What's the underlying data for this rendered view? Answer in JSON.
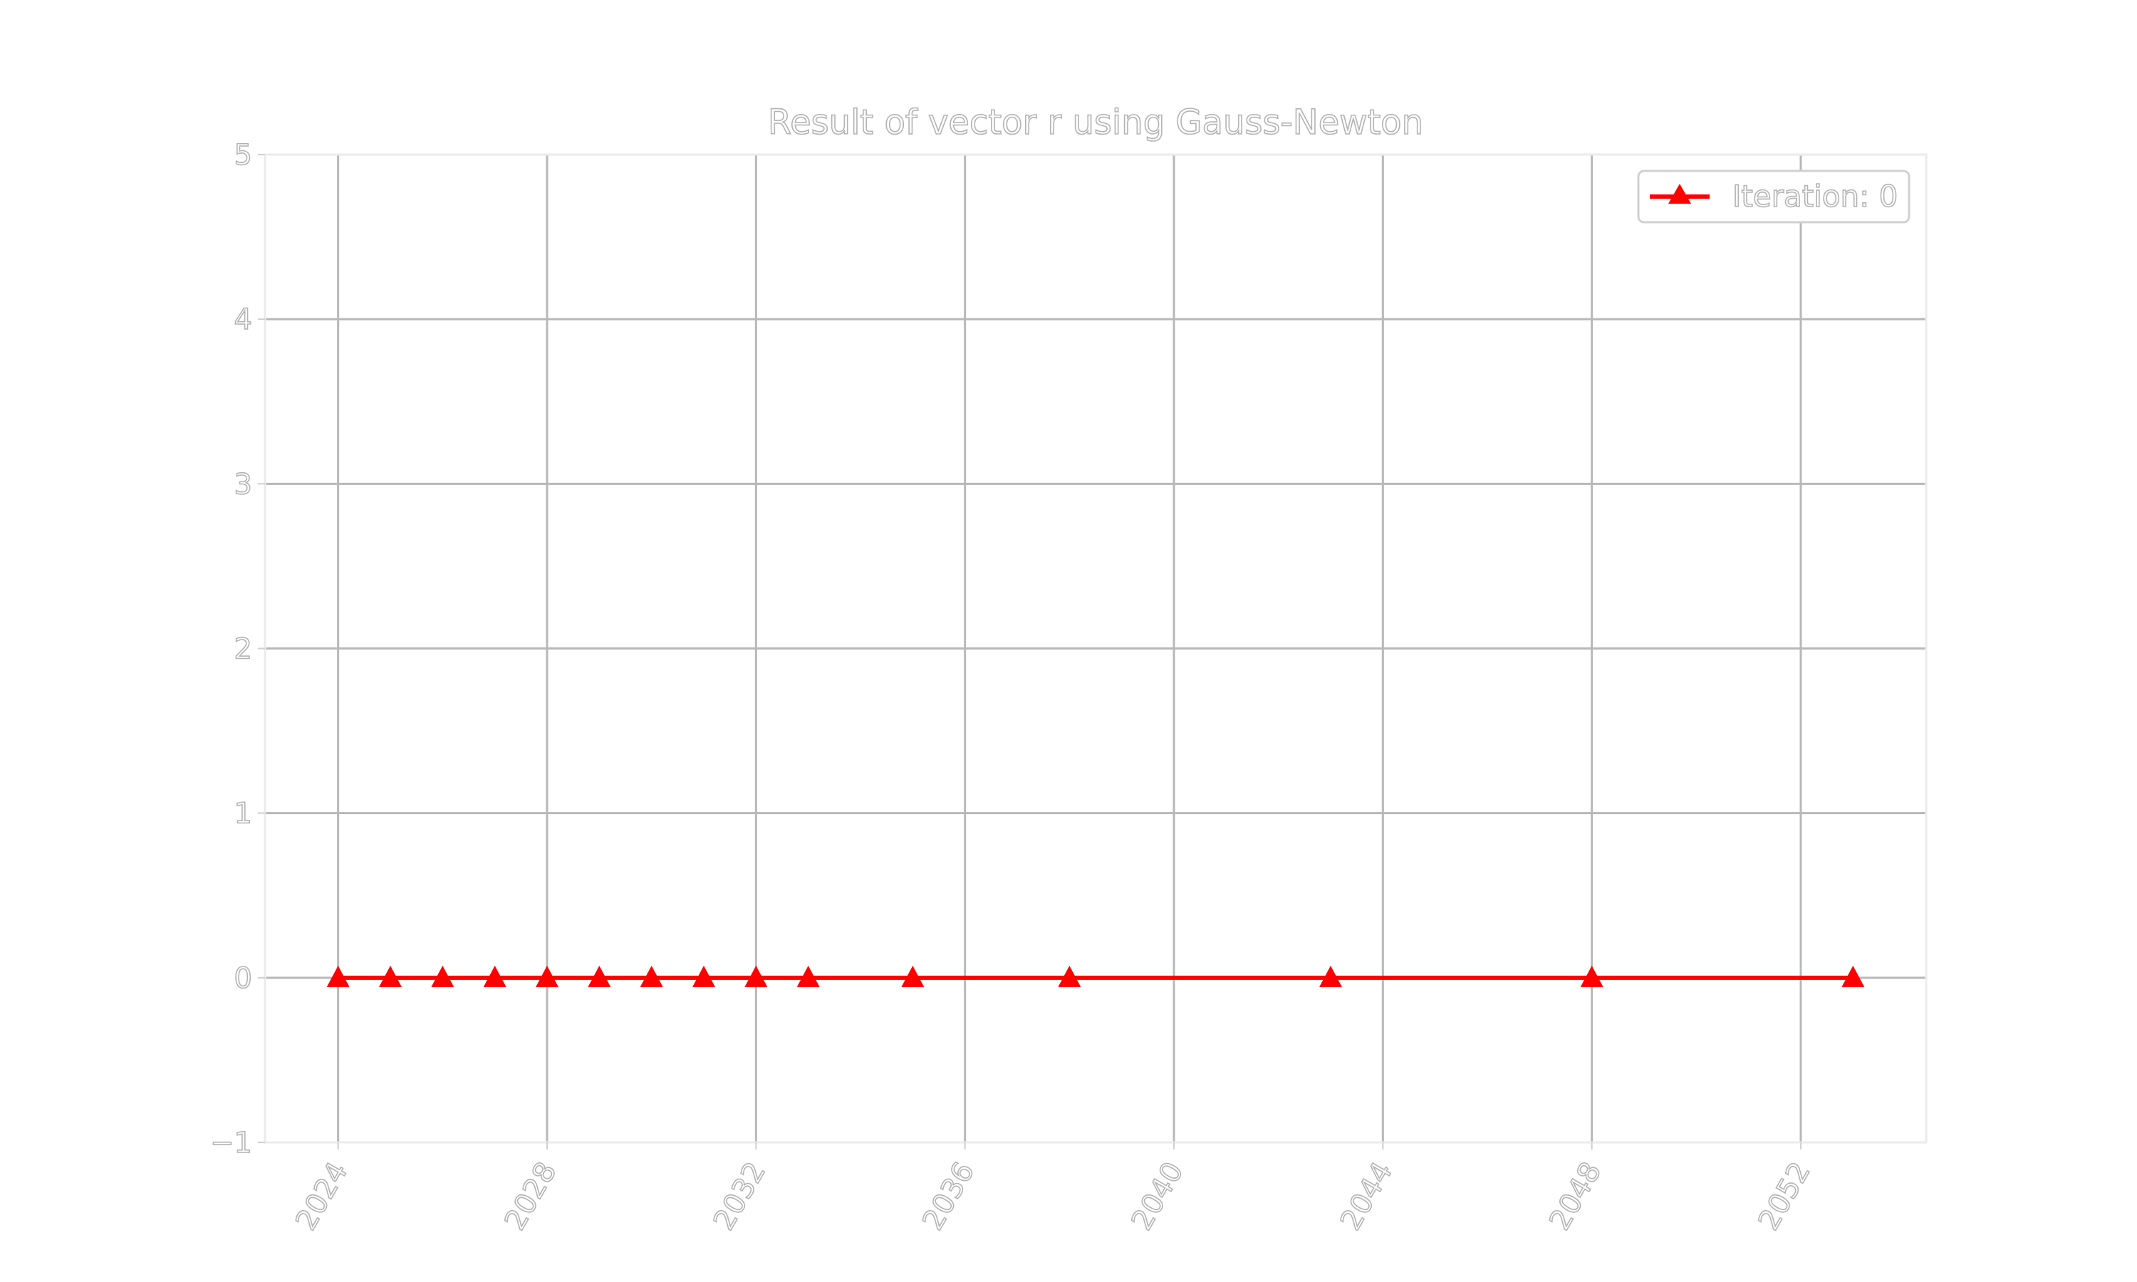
{
  "chart_data": {
    "type": "line",
    "title": "Result of vector r using Gauss-Newton",
    "xlabel": "",
    "ylabel": "",
    "xlim": [
      2022.6,
      2054.4
    ],
    "ylim": [
      -1,
      5
    ],
    "x_ticks": [
      "2024",
      "2028",
      "2032",
      "2036",
      "2040",
      "2044",
      "2048",
      "2052"
    ],
    "y_ticks": [
      "−1",
      "0",
      "1",
      "2",
      "3",
      "4",
      "5"
    ],
    "grid": true,
    "legend_position": "top-right",
    "series": [
      {
        "name": "Iteration: 0",
        "color": "#ff0000",
        "marker": "triangle-up",
        "x": [
          2024,
          2025,
          2026,
          2027,
          2028,
          2029,
          2030,
          2031,
          2032,
          2033,
          2035,
          2038,
          2043,
          2048,
          2053
        ],
        "y": [
          0,
          0,
          0,
          0,
          0,
          0,
          0,
          0,
          0,
          0,
          0,
          0,
          0,
          0,
          0
        ]
      }
    ]
  }
}
